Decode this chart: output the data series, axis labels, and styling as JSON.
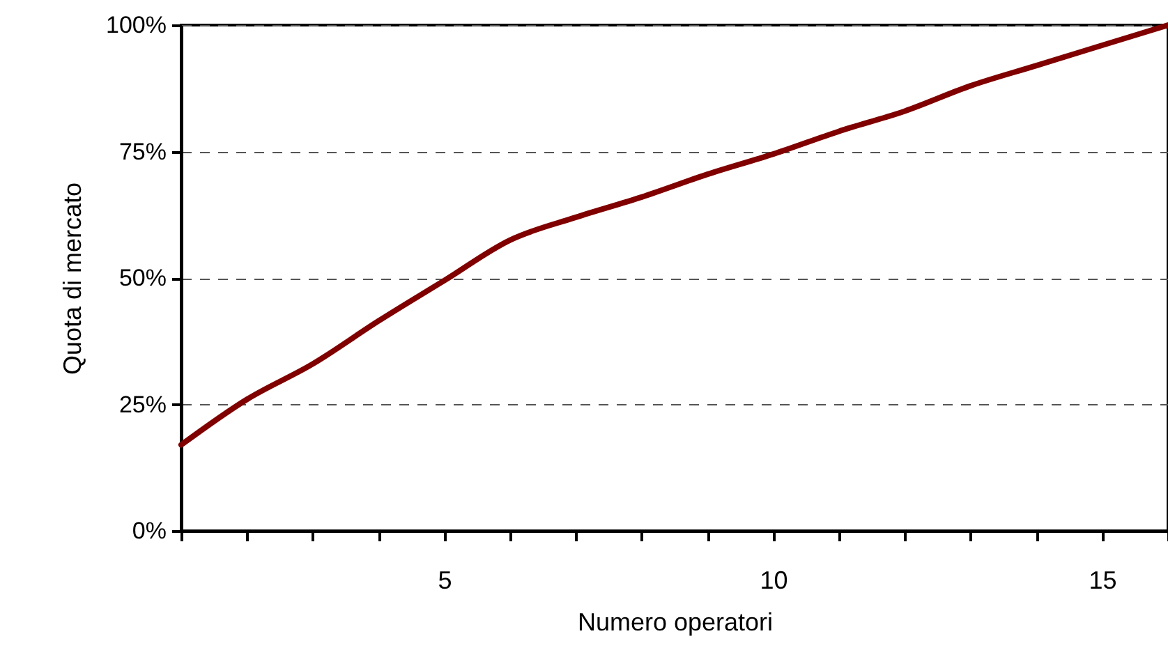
{
  "chart_data": {
    "type": "line",
    "xlabel": "Numero operatori",
    "ylabel": "Quota di mercato",
    "x": [
      1,
      2,
      3,
      4,
      5,
      6,
      7,
      8,
      9,
      10,
      11,
      12,
      13,
      14,
      15,
      16
    ],
    "series": [
      {
        "color": "#800000",
        "values": [
          17,
          26,
          33,
          41.5,
          49.5,
          57.5,
          62,
          66,
          70.5,
          74.5,
          79,
          83,
          88,
          92,
          96,
          100
        ]
      }
    ],
    "xlim": [
      1,
      16
    ],
    "xticks": [
      {
        "value": 1,
        "label": null
      },
      {
        "value": 2,
        "label": null
      },
      {
        "value": 3,
        "label": null
      },
      {
        "value": 4,
        "label": null
      },
      5,
      {
        "value": 6,
        "label": null
      },
      {
        "value": 7,
        "label": null
      },
      {
        "value": 8,
        "label": null
      },
      {
        "value": 9,
        "label": null
      },
      10,
      {
        "value": 11,
        "label": null
      },
      {
        "value": 12,
        "label": null
      },
      {
        "value": 13,
        "label": null
      },
      {
        "value": 14,
        "label": null
      },
      15,
      {
        "value": 16,
        "label": null
      }
    ],
    "ylim": [
      0,
      100
    ],
    "yticks": [
      {
        "value": 0,
        "label": "0%"
      },
      {
        "value": 25,
        "label": "25%"
      },
      {
        "value": 50,
        "label": "50%"
      },
      {
        "value": 75,
        "label": "75%"
      },
      {
        "value": 100,
        "label": "100%"
      }
    ],
    "grid": "y",
    "marker": "none",
    "line_style": "solid"
  }
}
